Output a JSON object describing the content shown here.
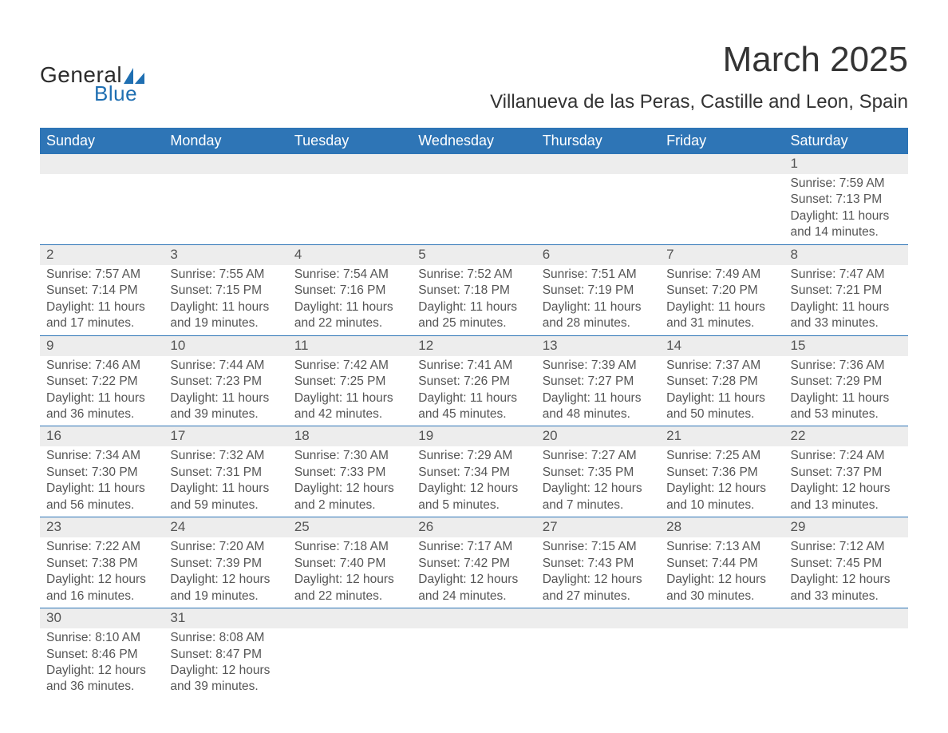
{
  "logo": {
    "text1": "General",
    "text2": "Blue",
    "shape_color": "#1f6fb2"
  },
  "title": "March 2025",
  "location": "Villanueva de las Peras, Castille and Leon, Spain",
  "colors": {
    "header_bg": "#2e75b6",
    "header_text": "#ffffff",
    "daynum_bg": "#ededed",
    "border": "#2e75b6",
    "text": "#555555"
  },
  "typography": {
    "title_fontsize": 44,
    "location_fontsize": 24,
    "weekday_fontsize": 18,
    "daynum_fontsize": 17,
    "body_fontsize": 15.5
  },
  "weekdays": [
    "Sunday",
    "Monday",
    "Tuesday",
    "Wednesday",
    "Thursday",
    "Friday",
    "Saturday"
  ],
  "labels": {
    "sunrise": "Sunrise:",
    "sunset": "Sunset:",
    "daylight": "Daylight:"
  },
  "weeks": [
    [
      null,
      null,
      null,
      null,
      null,
      null,
      {
        "n": "1",
        "sunrise": "7:59 AM",
        "sunset": "7:13 PM",
        "daylight": "11 hours and 14 minutes."
      }
    ],
    [
      {
        "n": "2",
        "sunrise": "7:57 AM",
        "sunset": "7:14 PM",
        "daylight": "11 hours and 17 minutes."
      },
      {
        "n": "3",
        "sunrise": "7:55 AM",
        "sunset": "7:15 PM",
        "daylight": "11 hours and 19 minutes."
      },
      {
        "n": "4",
        "sunrise": "7:54 AM",
        "sunset": "7:16 PM",
        "daylight": "11 hours and 22 minutes."
      },
      {
        "n": "5",
        "sunrise": "7:52 AM",
        "sunset": "7:18 PM",
        "daylight": "11 hours and 25 minutes."
      },
      {
        "n": "6",
        "sunrise": "7:51 AM",
        "sunset": "7:19 PM",
        "daylight": "11 hours and 28 minutes."
      },
      {
        "n": "7",
        "sunrise": "7:49 AM",
        "sunset": "7:20 PM",
        "daylight": "11 hours and 31 minutes."
      },
      {
        "n": "8",
        "sunrise": "7:47 AM",
        "sunset": "7:21 PM",
        "daylight": "11 hours and 33 minutes."
      }
    ],
    [
      {
        "n": "9",
        "sunrise": "7:46 AM",
        "sunset": "7:22 PM",
        "daylight": "11 hours and 36 minutes."
      },
      {
        "n": "10",
        "sunrise": "7:44 AM",
        "sunset": "7:23 PM",
        "daylight": "11 hours and 39 minutes."
      },
      {
        "n": "11",
        "sunrise": "7:42 AM",
        "sunset": "7:25 PM",
        "daylight": "11 hours and 42 minutes."
      },
      {
        "n": "12",
        "sunrise": "7:41 AM",
        "sunset": "7:26 PM",
        "daylight": "11 hours and 45 minutes."
      },
      {
        "n": "13",
        "sunrise": "7:39 AM",
        "sunset": "7:27 PM",
        "daylight": "11 hours and 48 minutes."
      },
      {
        "n": "14",
        "sunrise": "7:37 AM",
        "sunset": "7:28 PM",
        "daylight": "11 hours and 50 minutes."
      },
      {
        "n": "15",
        "sunrise": "7:36 AM",
        "sunset": "7:29 PM",
        "daylight": "11 hours and 53 minutes."
      }
    ],
    [
      {
        "n": "16",
        "sunrise": "7:34 AM",
        "sunset": "7:30 PM",
        "daylight": "11 hours and 56 minutes."
      },
      {
        "n": "17",
        "sunrise": "7:32 AM",
        "sunset": "7:31 PM",
        "daylight": "11 hours and 59 minutes."
      },
      {
        "n": "18",
        "sunrise": "7:30 AM",
        "sunset": "7:33 PM",
        "daylight": "12 hours and 2 minutes."
      },
      {
        "n": "19",
        "sunrise": "7:29 AM",
        "sunset": "7:34 PM",
        "daylight": "12 hours and 5 minutes."
      },
      {
        "n": "20",
        "sunrise": "7:27 AM",
        "sunset": "7:35 PM",
        "daylight": "12 hours and 7 minutes."
      },
      {
        "n": "21",
        "sunrise": "7:25 AM",
        "sunset": "7:36 PM",
        "daylight": "12 hours and 10 minutes."
      },
      {
        "n": "22",
        "sunrise": "7:24 AM",
        "sunset": "7:37 PM",
        "daylight": "12 hours and 13 minutes."
      }
    ],
    [
      {
        "n": "23",
        "sunrise": "7:22 AM",
        "sunset": "7:38 PM",
        "daylight": "12 hours and 16 minutes."
      },
      {
        "n": "24",
        "sunrise": "7:20 AM",
        "sunset": "7:39 PM",
        "daylight": "12 hours and 19 minutes."
      },
      {
        "n": "25",
        "sunrise": "7:18 AM",
        "sunset": "7:40 PM",
        "daylight": "12 hours and 22 minutes."
      },
      {
        "n": "26",
        "sunrise": "7:17 AM",
        "sunset": "7:42 PM",
        "daylight": "12 hours and 24 minutes."
      },
      {
        "n": "27",
        "sunrise": "7:15 AM",
        "sunset": "7:43 PM",
        "daylight": "12 hours and 27 minutes."
      },
      {
        "n": "28",
        "sunrise": "7:13 AM",
        "sunset": "7:44 PM",
        "daylight": "12 hours and 30 minutes."
      },
      {
        "n": "29",
        "sunrise": "7:12 AM",
        "sunset": "7:45 PM",
        "daylight": "12 hours and 33 minutes."
      }
    ],
    [
      {
        "n": "30",
        "sunrise": "8:10 AM",
        "sunset": "8:46 PM",
        "daylight": "12 hours and 36 minutes."
      },
      {
        "n": "31",
        "sunrise": "8:08 AM",
        "sunset": "8:47 PM",
        "daylight": "12 hours and 39 minutes."
      },
      null,
      null,
      null,
      null,
      null
    ]
  ]
}
